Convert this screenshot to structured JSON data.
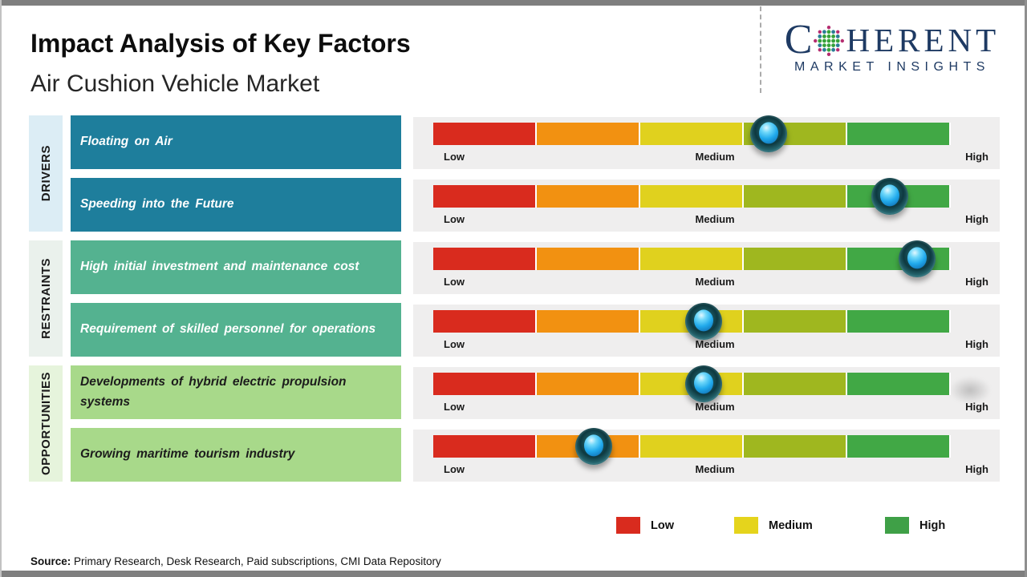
{
  "header": {
    "title": "Impact Analysis of Key Factors",
    "subtitle": "Air Cushion Vehicle Market"
  },
  "logo": {
    "line1_prefix": "C",
    "line1_suffix": "HERENT",
    "line2": "MARKET INSIGHTS",
    "brand_color": "#1e3a63"
  },
  "chart_data": {
    "type": "impact-scale",
    "title": "Impact Analysis of Key Factors",
    "subtitle": "Air Cushion Vehicle Market",
    "scale_labels": [
      "Low",
      "Medium",
      "High"
    ],
    "scale_range": [
      0,
      100
    ],
    "segment_colors": [
      "#d92b1e",
      "#f29111",
      "#e0d11e",
      "#9fb71f",
      "#41a845"
    ],
    "marker_colors": {
      "outer": "#15464d",
      "core": "#21aaec"
    },
    "groups": [
      {
        "label": "DRIVERS",
        "strip_color": "#dcedf5",
        "factor_color": "#1e7e9c",
        "factor_text_color": "#ffffff",
        "factors": [
          {
            "text": "Floating on Air",
            "impact_pct": 64.8
          },
          {
            "text": "Speeding into the Future",
            "impact_pct": 88.2
          }
        ]
      },
      {
        "label": "RESTRAINTS",
        "strip_color": "#eaf1ec",
        "factor_color": "#54b290",
        "factor_text_color": "#ffffff",
        "factors": [
          {
            "text": "High initial investment and maintenance cost",
            "impact_pct": 93.5
          },
          {
            "text": "Requirement of skilled personnel for operations",
            "impact_pct": 52.2
          }
        ]
      },
      {
        "label": "OPPORTUNITIES",
        "strip_color": "#e6f4dc",
        "factor_color": "#a8d98a",
        "factor_text_color": "#1c1c1c",
        "factors": [
          {
            "text": "Developments of hybrid electric propulsion systems",
            "impact_pct": 52.2
          },
          {
            "text": "Growing maritime tourism industry",
            "impact_pct": 31.0
          }
        ]
      }
    ],
    "legend": [
      {
        "label": "Low",
        "color": "#d92b1e"
      },
      {
        "label": "Medium",
        "color": "#e5d41c"
      },
      {
        "label": "High",
        "color": "#3fa047"
      }
    ],
    "legend_position": "bottom-right",
    "grid": false
  },
  "source": {
    "label": "Source:",
    "text": "Primary Research, Desk Research, Paid subscriptions, CMI Data Repository"
  }
}
